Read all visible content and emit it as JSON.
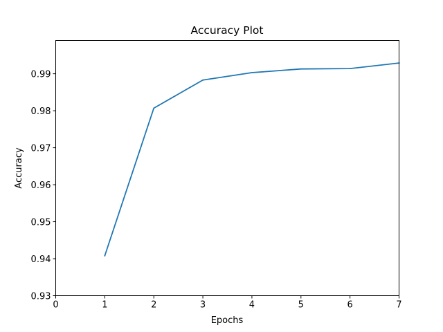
{
  "chart_data": {
    "type": "line",
    "title": "Accuracy Plot",
    "xlabel": "Epochs",
    "ylabel": "Accuracy",
    "xlim": [
      0,
      7
    ],
    "ylim": [
      0.93,
      0.999
    ],
    "x_ticks": [
      0,
      1,
      2,
      3,
      4,
      5,
      6,
      7
    ],
    "y_ticks": [
      0.93,
      0.94,
      0.95,
      0.96,
      0.97,
      0.98,
      0.99
    ],
    "x_tick_labels": [
      "0",
      "1",
      "2",
      "3",
      "4",
      "5",
      "6",
      "7"
    ],
    "y_tick_labels": [
      "0.93",
      "0.94",
      "0.95",
      "0.96",
      "0.97",
      "0.98",
      "0.99"
    ],
    "grid": false,
    "series": [
      {
        "color": "#1f77b4",
        "x": [
          1,
          2,
          3,
          4,
          5,
          6,
          7
        ],
        "y": [
          0.9408,
          0.9807,
          0.9883,
          0.9903,
          0.9913,
          0.9914,
          0.9929
        ]
      }
    ]
  }
}
